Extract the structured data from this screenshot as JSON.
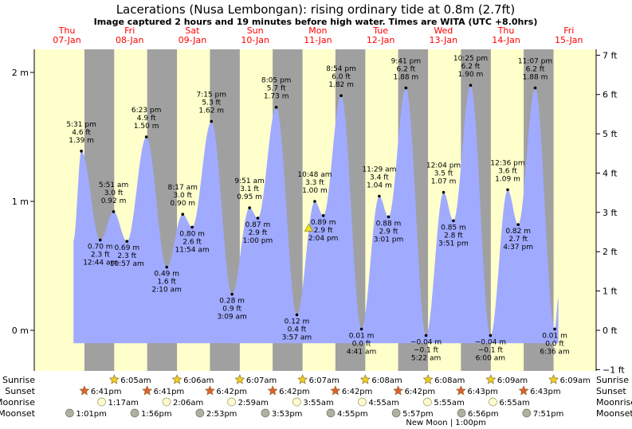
{
  "title": "Lacerations (Nusa Lembongan): rising  ordinary tide at 0.8m (2.7ft)",
  "subtitle": "Image captured 2 hours and 19 minutes before high water. Times are WITA (UTC +8.0hrs)",
  "colors": {
    "day": "#ffffcc",
    "night": "#a0a0a0",
    "tide": "#a0aaff",
    "day_label": "#ff0000",
    "sun": "#f0d020",
    "sunset_star": "#e06030",
    "moon": "#fffbd0",
    "moonset": "#b0b0a0"
  },
  "days": [
    {
      "dow": "Thu",
      "date": "07-Jan"
    },
    {
      "dow": "Fri",
      "date": "08-Jan"
    },
    {
      "dow": "Sat",
      "date": "09-Jan"
    },
    {
      "dow": "Sun",
      "date": "10-Jan"
    },
    {
      "dow": "Mon",
      "date": "11-Jan"
    },
    {
      "dow": "Tue",
      "date": "12-Jan"
    },
    {
      "dow": "Wed",
      "date": "13-Jan"
    },
    {
      "dow": "Thu",
      "date": "14-Jan"
    },
    {
      "dow": "Fri",
      "date": "15-Jan"
    }
  ],
  "chart_data": {
    "type": "area",
    "title": "Lacerations (Nusa Lembongan): rising  ordinary tide at 0.8m (2.7ft)",
    "x_unit": "hours from Thu 07-Jan 00:00 (WITA)",
    "y_left": {
      "label": "m",
      "ticks": [
        "0 m",
        "1 m",
        "2 m"
      ],
      "ylim": [
        -0.3,
        2.2
      ]
    },
    "y_right": {
      "label": "ft",
      "ticks": [
        "−1 ft",
        "0 ft",
        "1 ft",
        "2 ft",
        "3 ft",
        "4 ft",
        "5 ft",
        "6 ft",
        "7 ft"
      ]
    },
    "current": {
      "height_m": 0.8,
      "height_ft": 2.7,
      "state": "rising ordinary tide"
    },
    "extremes": [
      {
        "type": "high",
        "time": "5:31 pm",
        "ft": "4.6 ft",
        "m": "1.39 m",
        "day": "Thu",
        "h": 17.52,
        "v": 1.39
      },
      {
        "type": "low",
        "time": "12:44 am",
        "ft": "2.3 ft",
        "m": "0.70 m",
        "day": "Fri",
        "h": 24.73,
        "v": 0.7
      },
      {
        "type": "high",
        "time": "5:51 am",
        "ft": "3.0 ft",
        "m": "0.92 m",
        "day": "Fri",
        "h": 29.85,
        "v": 0.92
      },
      {
        "type": "low",
        "time": "10:57 am",
        "ft": "2.3 ft",
        "m": "0.69 m",
        "day": "Fri",
        "h": 34.95,
        "v": 0.69
      },
      {
        "type": "high",
        "time": "6:23 pm",
        "ft": "4.9 ft",
        "m": "1.50 m",
        "day": "Fri",
        "h": 42.38,
        "v": 1.5
      },
      {
        "type": "low",
        "time": "2:10 am",
        "ft": "1.6 ft",
        "m": "0.49 m",
        "day": "Sat",
        "h": 50.17,
        "v": 0.49
      },
      {
        "type": "high",
        "time": "8:17 am",
        "ft": "3.0 ft",
        "m": "0.90 m",
        "day": "Sat",
        "h": 56.28,
        "v": 0.9
      },
      {
        "type": "low",
        "time": "11:54 am",
        "ft": "2.6 ft",
        "m": "0.80 m",
        "day": "Sat",
        "h": 59.9,
        "v": 0.8
      },
      {
        "type": "high",
        "time": "7:15 pm",
        "ft": "5.3 ft",
        "m": "1.62 m",
        "day": "Sat",
        "h": 67.25,
        "v": 1.62
      },
      {
        "type": "low",
        "time": "3:09 am",
        "ft": "0.9 ft",
        "m": "0.28 m",
        "day": "Sun",
        "h": 75.15,
        "v": 0.28
      },
      {
        "type": "high",
        "time": "9:51 am",
        "ft": "3.1 ft",
        "m": "0.95 m",
        "day": "Sun",
        "h": 81.85,
        "v": 0.95
      },
      {
        "type": "low",
        "time": "1:00 pm",
        "ft": "2.9 ft",
        "m": "0.87 m",
        "day": "Sun",
        "h": 85.0,
        "v": 0.87
      },
      {
        "type": "high",
        "time": "8:05 pm",
        "ft": "5.7 ft",
        "m": "1.73 m",
        "day": "Sun",
        "h": 92.08,
        "v": 1.73
      },
      {
        "type": "low",
        "time": "3:57 am",
        "ft": "0.4 ft",
        "m": "0.12 m",
        "day": "Mon",
        "h": 99.95,
        "v": 0.12
      },
      {
        "type": "high",
        "time": "10:48 am",
        "ft": "3.3 ft",
        "m": "1.00 m",
        "day": "Mon",
        "h": 106.8,
        "v": 1.0
      },
      {
        "type": "low",
        "time": "2:04 pm",
        "ft": "2.9 ft",
        "m": "0.89 m",
        "day": "Mon",
        "h": 110.07,
        "v": 0.89
      },
      {
        "type": "high",
        "time": "8:54 pm",
        "ft": "6.0 ft",
        "m": "1.82 m",
        "day": "Mon",
        "h": 116.9,
        "v": 1.82
      },
      {
        "type": "low",
        "time": "4:41 am",
        "ft": "0.0 ft",
        "m": "0.01 m",
        "day": "Tue",
        "h": 124.68,
        "v": 0.01
      },
      {
        "type": "high",
        "time": "11:29 am",
        "ft": "3.4 ft",
        "m": "1.04 m",
        "day": "Tue",
        "h": 131.48,
        "v": 1.04
      },
      {
        "type": "low",
        "time": "3:01 pm",
        "ft": "2.9 ft",
        "m": "0.88 m",
        "day": "Tue",
        "h": 135.02,
        "v": 0.88
      },
      {
        "type": "high",
        "time": "9:41 pm",
        "ft": "6.2 ft",
        "m": "1.88 m",
        "day": "Tue",
        "h": 141.68,
        "v": 1.88
      },
      {
        "type": "low",
        "time": "5:22 am",
        "ft": "−0.1 ft",
        "m": "−0.04 m",
        "day": "Wed",
        "h": 149.37,
        "v": -0.04
      },
      {
        "type": "high",
        "time": "12:04 pm",
        "ft": "3.5 ft",
        "m": "1.07 m",
        "day": "Wed",
        "h": 156.07,
        "v": 1.07
      },
      {
        "type": "low",
        "time": "3:51 pm",
        "ft": "2.8 ft",
        "m": "0.85 m",
        "day": "Wed",
        "h": 159.85,
        "v": 0.85
      },
      {
        "type": "high",
        "time": "10:25 pm",
        "ft": "6.2 ft",
        "m": "1.90 m",
        "day": "Wed",
        "h": 166.42,
        "v": 1.9
      },
      {
        "type": "low",
        "time": "6:00 am",
        "ft": "−0.1 ft",
        "m": "−0.04 m",
        "day": "Thu",
        "h": 174.0,
        "v": -0.04
      },
      {
        "type": "high",
        "time": "12:36 pm",
        "ft": "3.6 ft",
        "m": "1.09 m",
        "day": "Thu",
        "h": 180.6,
        "v": 1.09
      },
      {
        "type": "low",
        "time": "4:37 pm",
        "ft": "2.7 ft",
        "m": "0.82 m",
        "day": "Thu",
        "h": 184.62,
        "v": 0.82
      },
      {
        "type": "high",
        "time": "11:07 pm",
        "ft": "6.2 ft",
        "m": "1.88 m",
        "day": "Thu",
        "h": 191.12,
        "v": 1.88
      },
      {
        "type": "low",
        "time": "6:36 am",
        "ft": "0.0 ft",
        "m": "0.01 m",
        "day": "Fri",
        "h": 198.6,
        "v": 0.01
      }
    ],
    "series_start_h": 14.5,
    "series_start_v": 0.7,
    "series_end_h": 200.0,
    "series_end_v": 0.25
  },
  "events": {
    "sunrise_label": "Sunrise",
    "sunset_label": "Sunset",
    "moonrise_label": "Moonrise",
    "moonset_label": "Moonset",
    "sunrise": [
      {
        "day": 1,
        "h": 30.08,
        "time": "6:05am"
      },
      {
        "day": 2,
        "h": 54.1,
        "time": "6:06am"
      },
      {
        "day": 3,
        "h": 78.12,
        "time": "6:07am"
      },
      {
        "day": 4,
        "h": 102.12,
        "time": "6:07am"
      },
      {
        "day": 5,
        "h": 126.13,
        "time": "6:08am"
      },
      {
        "day": 6,
        "h": 150.13,
        "time": "6:08am"
      },
      {
        "day": 7,
        "h": 174.15,
        "time": "6:09am"
      },
      {
        "day": 8,
        "h": 198.15,
        "time": "6:09am"
      }
    ],
    "sunset": [
      {
        "h": 18.68,
        "time": "6:41pm"
      },
      {
        "h": 42.68,
        "time": "6:41pm"
      },
      {
        "h": 66.7,
        "time": "6:42pm"
      },
      {
        "h": 90.7,
        "time": "6:42pm"
      },
      {
        "h": 114.7,
        "time": "6:42pm"
      },
      {
        "h": 138.7,
        "time": "6:42pm"
      },
      {
        "h": 162.72,
        "time": "6:43pm"
      },
      {
        "h": 186.72,
        "time": "6:43pm"
      }
    ],
    "moonrise": [
      {
        "h": 25.28,
        "time": "1:17am"
      },
      {
        "h": 50.1,
        "time": "2:06am"
      },
      {
        "h": 74.98,
        "time": "2:59am"
      },
      {
        "h": 99.92,
        "time": "3:55am"
      },
      {
        "h": 124.92,
        "time": "4:55am"
      },
      {
        "h": 149.92,
        "time": "5:55am"
      },
      {
        "h": 174.92,
        "time": "6:55am"
      }
    ],
    "moonset": [
      {
        "h": 13.02,
        "time": "1:01pm"
      },
      {
        "h": 37.93,
        "time": "1:56pm"
      },
      {
        "h": 62.88,
        "time": "2:53pm"
      },
      {
        "h": 87.88,
        "time": "3:53pm"
      },
      {
        "h": 112.92,
        "time": "4:55pm"
      },
      {
        "h": 137.95,
        "time": "5:57pm"
      },
      {
        "h": 162.93,
        "time": "6:56pm"
      },
      {
        "h": 187.85,
        "time": "7:51pm"
      }
    ],
    "new_moon": {
      "text": "New Moon",
      "time": "1:00pm",
      "h": 157.0
    }
  }
}
